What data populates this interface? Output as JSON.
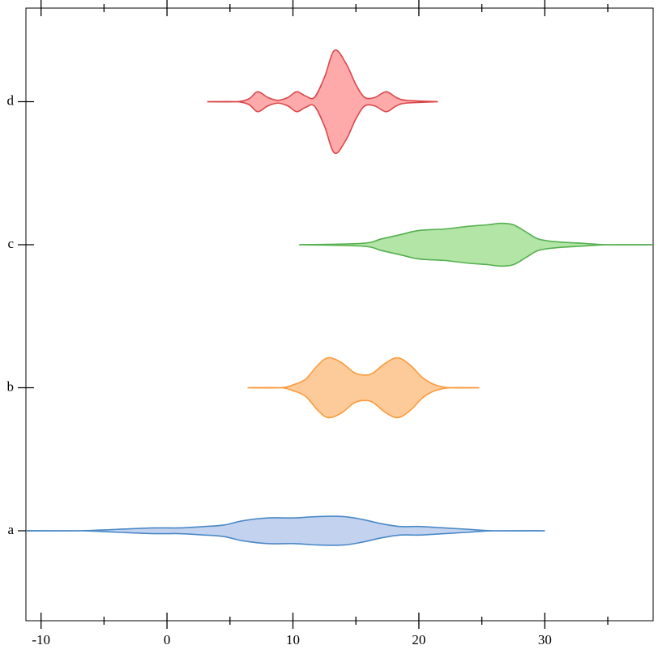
{
  "chart_data": {
    "type": "violin",
    "xlim": [
      -11.2,
      38.6
    ],
    "xticks": [
      -10,
      0,
      10,
      20,
      30
    ],
    "xminorticks": [
      -5,
      5,
      15,
      25,
      35
    ],
    "series": [
      {
        "name": "a",
        "color": "#4a89c6",
        "fill": "#c3d3ef",
        "x": [
          -11.2,
          -7,
          -4,
          -1,
          1,
          3,
          4.5,
          6,
          8,
          10,
          12,
          14,
          15.5,
          17,
          18.5,
          20,
          22,
          24,
          26,
          30
        ],
        "widths": [
          0,
          0,
          0.01,
          0.02,
          0.02,
          0.03,
          0.04,
          0.07,
          0.09,
          0.09,
          0.1,
          0.1,
          0.08,
          0.05,
          0.03,
          0.03,
          0.02,
          0.01,
          0,
          0
        ]
      },
      {
        "name": "b",
        "color": "#fc9a3c",
        "fill": "#fdcb99",
        "x": [
          6.4,
          9,
          10,
          11,
          12,
          12.8,
          13.8,
          14.8,
          15.5,
          16.3,
          17.3,
          18.3,
          19.3,
          20.3,
          21.3,
          22.5,
          24.8
        ],
        "widths": [
          0,
          0,
          0.02,
          0.06,
          0.16,
          0.21,
          0.18,
          0.11,
          0.09,
          0.1,
          0.17,
          0.21,
          0.16,
          0.07,
          0.02,
          0,
          0
        ]
      },
      {
        "name": "c",
        "color": "#55b04f",
        "fill": "#b2e5a6",
        "x": [
          10.5,
          15.5,
          17,
          18.5,
          20,
          22,
          24,
          25.5,
          26.5,
          27.5,
          28.5,
          29.5,
          31,
          33,
          35,
          38.6
        ],
        "widths": [
          0,
          0.01,
          0.04,
          0.07,
          0.1,
          0.11,
          0.13,
          0.14,
          0.15,
          0.14,
          0.09,
          0.04,
          0.02,
          0.01,
          0,
          0
        ]
      },
      {
        "name": "d",
        "color": "#d9474a",
        "fill": "#feaaab",
        "x": [
          3.2,
          5.5,
          6.5,
          7.2,
          8.0,
          8.8,
          9.6,
          10.3,
          11.0,
          11.7,
          12.5,
          13.3,
          14.2,
          15.0,
          15.7,
          16.5,
          17.4,
          18.2,
          19.0,
          21.5
        ],
        "widths": [
          0,
          0,
          0.02,
          0.07,
          0.03,
          0.01,
          0.03,
          0.07,
          0.04,
          0.03,
          0.17,
          0.36,
          0.27,
          0.12,
          0.03,
          0.03,
          0.07,
          0.03,
          0.01,
          0
        ]
      }
    ]
  }
}
